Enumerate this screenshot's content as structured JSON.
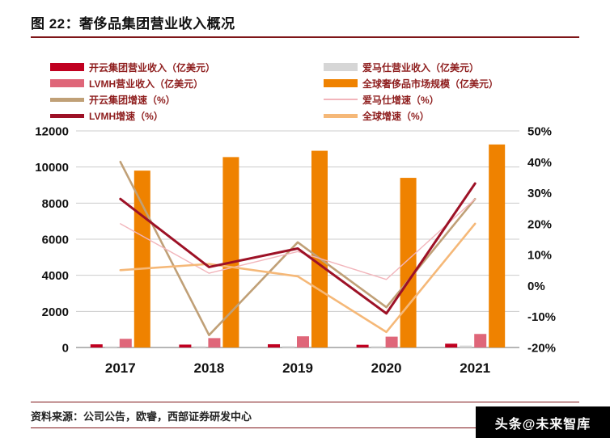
{
  "title": "图 22：奢侈品集团营业收入概况",
  "source": "资料来源：公司公告，欧睿，西部证券研发中心",
  "watermark": "头条@未来智库",
  "colors": {
    "rule": "#7e1518",
    "kering_bar": "#c00020",
    "hermes_bar": "#d6d6d6",
    "lvmh_bar": "#df6679",
    "global_bar": "#ef8200",
    "kering_line": "#c0a077",
    "hermes_line": "#f2b5bb",
    "lvmh_line": "#9d1126",
    "global_line": "#f5b878"
  },
  "legend": {
    "columns": [
      {
        "items": [
          {
            "label": "开云集团营业收入（亿美元）",
            "color": "#c00020",
            "swatch": "bar"
          },
          {
            "label": "LVMH营业收入（亿美元）",
            "color": "#df6679",
            "swatch": "bar"
          },
          {
            "label": "开云集团增速（%）",
            "color": "#c0a077",
            "swatch": "line"
          },
          {
            "label": "LVMH增速（%）",
            "color": "#9d1126",
            "swatch": "line"
          }
        ]
      },
      {
        "items": [
          {
            "label": "爱马仕营业收入（亿美元）",
            "color": "#d6d6d6",
            "swatch": "bar"
          },
          {
            "label": "全球奢侈品市场规模（亿美元）",
            "color": "#ef8200",
            "swatch": "bar"
          },
          {
            "label": "爱马仕增速（%）",
            "color": "#f2b5bb",
            "swatch": "line-thin"
          },
          {
            "label": "全球增速（%）",
            "color": "#f5b878",
            "swatch": "line"
          }
        ]
      }
    ]
  },
  "chart_data": {
    "type": "combo-bar-line",
    "categories": [
      "2017",
      "2018",
      "2019",
      "2020",
      "2021"
    ],
    "left_axis": {
      "min": 0,
      "max": 12000,
      "step": 2000,
      "ticks": [
        "0",
        "2000",
        "4000",
        "6000",
        "8000",
        "10000",
        "12000"
      ]
    },
    "right_axis": {
      "min": -20,
      "max": 50,
      "step": 10,
      "ticks": [
        "-20%",
        "-10%",
        "0%",
        "10%",
        "20%",
        "30%",
        "40%",
        "50%"
      ]
    },
    "bar_series": [
      {
        "name": "开云集团营业收入（亿美元）",
        "color": "#c00020",
        "values": [
          175,
          160,
          180,
          150,
          210
        ]
      },
      {
        "name": "爱马仕营业收入（亿美元）",
        "color": "#d6d6d6",
        "values": [
          60,
          70,
          75,
          70,
          105
        ]
      },
      {
        "name": "LVMH营业收入（亿美元）",
        "color": "#df6679",
        "values": [
          480,
          520,
          620,
          600,
          750
        ]
      },
      {
        "name": "全球奢侈品市场规模（亿美元）",
        "color": "#ef8200",
        "values": [
          9800,
          10550,
          10900,
          9400,
          11250
        ]
      }
    ],
    "line_series": [
      {
        "name": "开云集团增速（%）",
        "color": "#c0a077",
        "width": 2.6,
        "values": [
          40,
          -16,
          14,
          -7,
          28
        ]
      },
      {
        "name": "爱马仕增速（%）",
        "color": "#f2b5bb",
        "width": 1.4,
        "values": [
          20,
          4,
          11,
          2,
          28
        ]
      },
      {
        "name": "全球增速（%）",
        "color": "#f5b878",
        "width": 2.6,
        "values": [
          5,
          7,
          3,
          -15,
          20
        ]
      },
      {
        "name": "LVMH增速（%）",
        "color": "#9d1126",
        "width": 3,
        "values": [
          28,
          6,
          12,
          -9,
          33
        ]
      }
    ],
    "grid": true,
    "legend_position": "top"
  }
}
